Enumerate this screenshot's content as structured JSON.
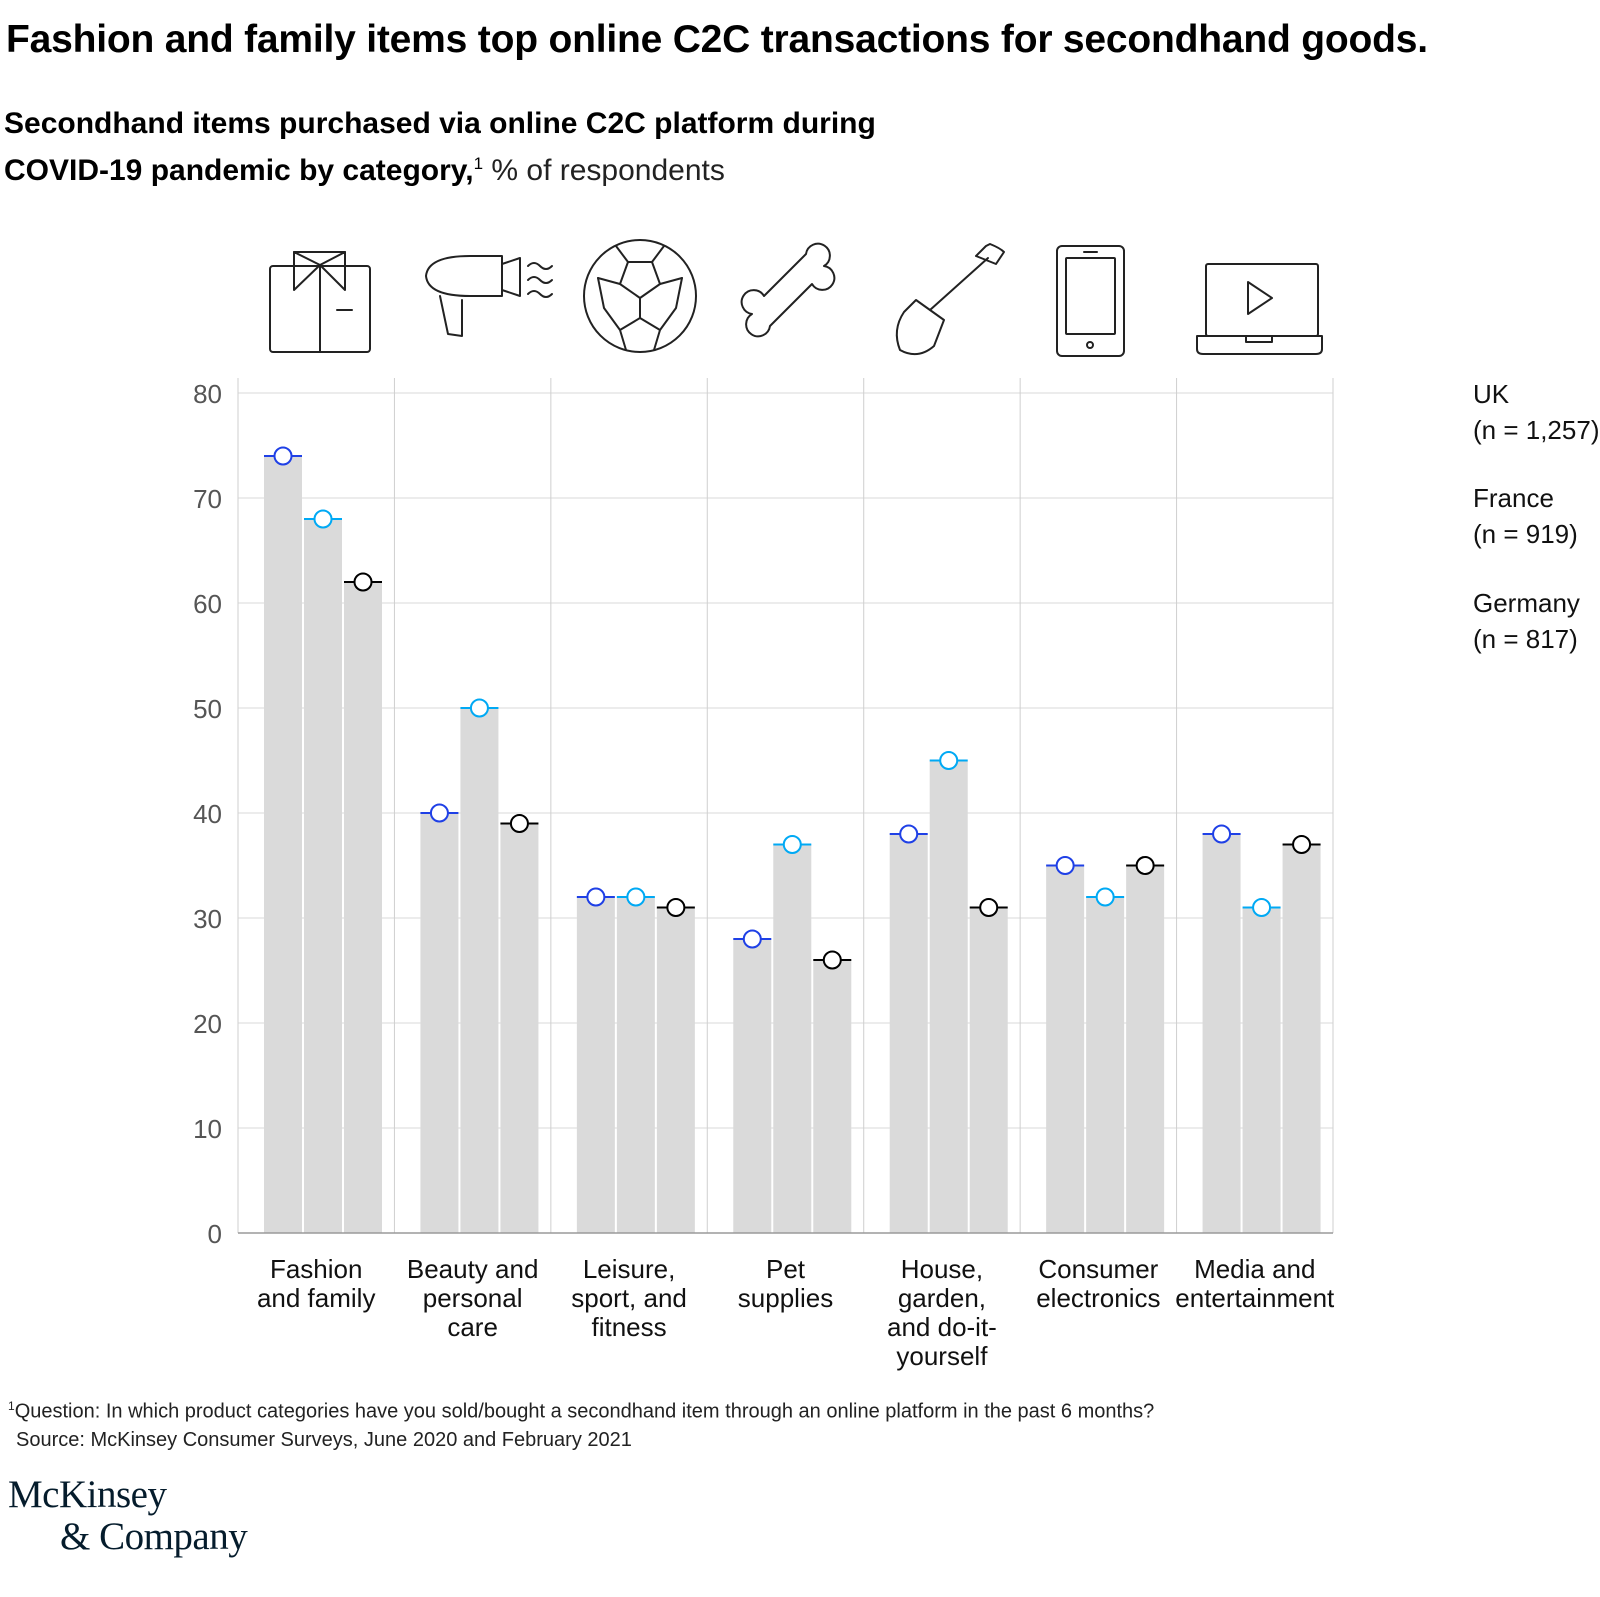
{
  "title": "Fashion and family items top online C2C transactions for secondhand goods.",
  "subtitle": {
    "bold_line1": "Secondhand items purchased via online C2C platform during",
    "bold_line2": "COVID-19 pandemic by category,",
    "footnote_marker": "1",
    "unit": " % of respondents"
  },
  "legend": [
    {
      "name": "UK",
      "n": "(n = 1,257)",
      "color": "#1f40e6"
    },
    {
      "name": "France",
      "n": "(n = 919)",
      "color": "#00a9f4"
    },
    {
      "name": "Germany",
      "n": "(n = 817)",
      "color": "#000000"
    }
  ],
  "icons": [
    "shirt-icon",
    "hair-dryer-icon",
    "soccer-ball-icon",
    "bone-icon",
    "shovel-icon",
    "smartphone-icon",
    "laptop-video-icon"
  ],
  "chart_data": {
    "type": "bar",
    "title": "Secondhand items purchased via online C2C platform during COVID-19 pandemic by category",
    "ylabel": "% of respondents",
    "xlabel": "",
    "ylim": [
      0,
      80
    ],
    "yticks": [
      0,
      10,
      20,
      30,
      40,
      50,
      60,
      70,
      80
    ],
    "grid": true,
    "categories": [
      [
        "Fashion",
        "and family"
      ],
      [
        "Beauty and",
        "personal",
        "care"
      ],
      [
        "Leisure,",
        "sport, and",
        "fitness"
      ],
      [
        "Pet",
        "supplies"
      ],
      [
        "House,",
        "garden,",
        "and do-it-",
        "yourself"
      ],
      [
        "Consumer",
        "electronics"
      ],
      [
        "Media and",
        "entertainment"
      ]
    ],
    "series": [
      {
        "name": "UK",
        "values": [
          74,
          40,
          32,
          28,
          38,
          35,
          38
        ]
      },
      {
        "name": "France",
        "values": [
          68,
          50,
          32,
          37,
          45,
          32,
          31
        ]
      },
      {
        "name": "Germany",
        "values": [
          62,
          39,
          31,
          26,
          31,
          35,
          37
        ]
      }
    ]
  },
  "footnote": {
    "marker": "1",
    "question": "Question: In which product categories have you sold/bought a secondhand item through an online platform in the past 6 months?",
    "source": "Source: McKinsey Consumer Surveys, June 2020 and February 2021"
  },
  "logo": {
    "line1": "McKinsey",
    "line2": "& Company"
  }
}
